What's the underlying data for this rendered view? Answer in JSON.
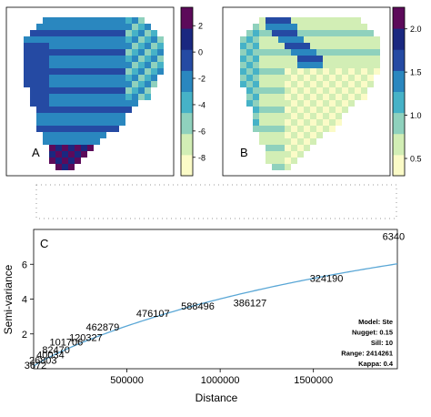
{
  "figure": {
    "panels": [
      {
        "label": "A",
        "colorbar": {
          "ticks": [
            2,
            0,
            -2,
            -4,
            -6,
            -8
          ]
        },
        "palette": [
          "#fbfbc7",
          "#d2eeb5",
          "#8fd1bd",
          "#46b2c7",
          "#2a87bf",
          "#254aa3",
          "#1a2880",
          "#5c0a5a"
        ]
      },
      {
        "label": "B",
        "colorbar": {
          "ticks": [
            2.0,
            1.5,
            1.0,
            0.5
          ]
        },
        "palette": [
          "#fbfbc7",
          "#d2eeb5",
          "#8fd1bd",
          "#46b2c7",
          "#2a87bf",
          "#254aa3",
          "#1a2880",
          "#5c0a5a"
        ]
      }
    ]
  },
  "chart_data": [
    {
      "type": "scatter",
      "panel_label": "C",
      "xlabel": "Distance",
      "ylabel": "Semi-variance",
      "xlim": [
        0,
        1950000
      ],
      "ylim": [
        0,
        8
      ],
      "x_ticks": [
        500000,
        1000000,
        1500000
      ],
      "y_ticks": [
        2,
        4,
        6
      ],
      "points": [
        {
          "x": 10000,
          "y": 0.2,
          "label": "3672"
        },
        {
          "x": 50000,
          "y": 0.5,
          "label": "26803"
        },
        {
          "x": 90000,
          "y": 0.8,
          "label": "40034"
        },
        {
          "x": 120000,
          "y": 1.1,
          "label": "82470"
        },
        {
          "x": 175000,
          "y": 1.55,
          "label": "101706"
        },
        {
          "x": 280000,
          "y": 1.8,
          "label": "120327"
        },
        {
          "x": 370000,
          "y": 2.4,
          "label": "462879"
        },
        {
          "x": 640000,
          "y": 3.2,
          "label": "476107"
        },
        {
          "x": 880000,
          "y": 3.6,
          "label": "588496"
        },
        {
          "x": 1160000,
          "y": 3.8,
          "label": "386127"
        },
        {
          "x": 1570000,
          "y": 5.2,
          "label": "324190"
        },
        {
          "x": 1930000,
          "y": 7.6,
          "label": "6340"
        }
      ],
      "fitted_curve": {
        "model": "Ste",
        "nugget": 0.15,
        "sill": 10,
        "range": 2414261,
        "kappa": 0.4,
        "color": "#5aa7d6"
      },
      "legend_lines": [
        "Model: Ste",
        "Nugget: 0.15",
        "Sill: 10",
        "Range: 2414261",
        "Kappa: 0.4"
      ]
    }
  ]
}
